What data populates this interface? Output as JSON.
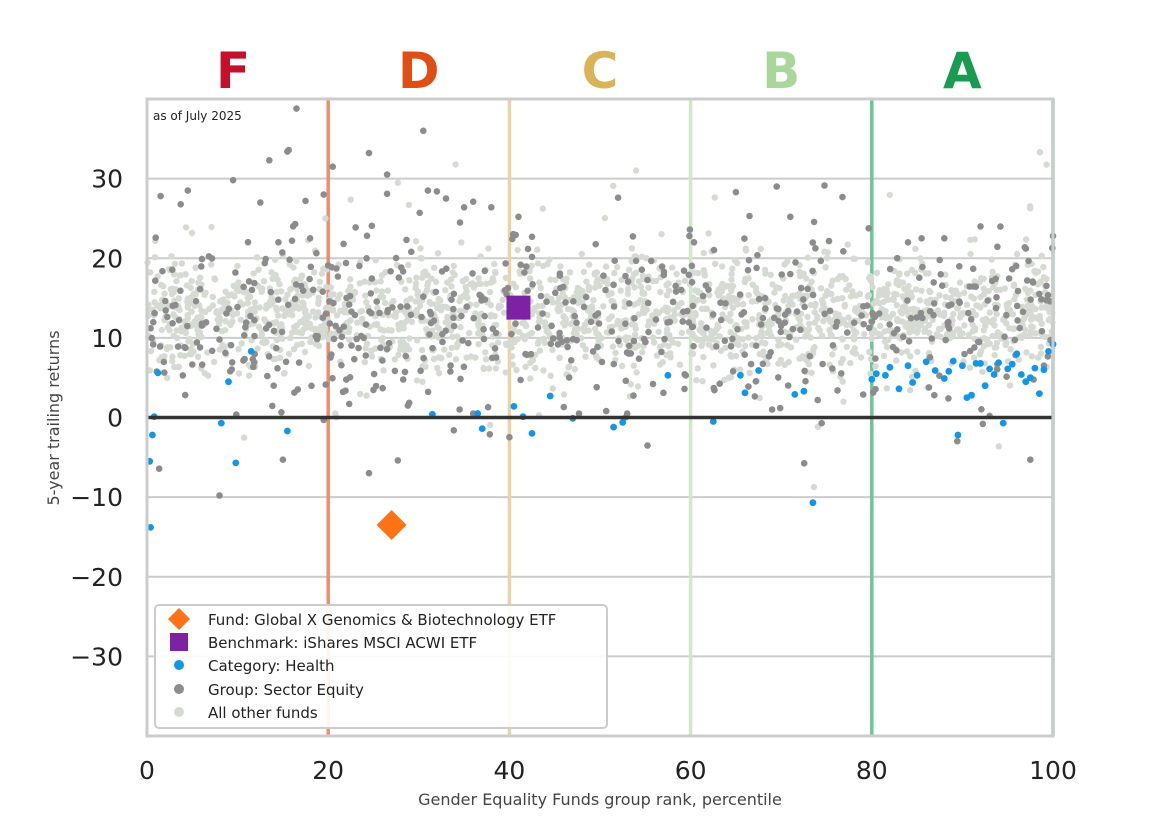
{
  "chart_data": {
    "type": "scatter",
    "annotation": "as of July 2025",
    "xlabel": "Gender Equality Funds group rank, percentile",
    "ylabel": "5-year trailing returns",
    "xlim": [
      0,
      100
    ],
    "ylim": [
      -40,
      40
    ],
    "x_ticks": [
      0,
      20,
      40,
      60,
      80,
      100
    ],
    "y_ticks": [
      30,
      20,
      10,
      0,
      -10,
      -20,
      -30
    ],
    "y_tick_labels": [
      "30",
      "20",
      "10",
      "0",
      "−10",
      "−20",
      "−30"
    ],
    "grid": "horizontal",
    "zero_line": 0,
    "grades": [
      {
        "label": "F",
        "x_center": 9.5,
        "color": "#C4102A"
      },
      {
        "label": "D",
        "x_center": 30,
        "color": "#E04E16"
      },
      {
        "label": "C",
        "x_center": 50,
        "color": "#D9B356"
      },
      {
        "label": "B",
        "x_center": 70,
        "color": "#A9D79A"
      },
      {
        "label": "A",
        "x_center": 90,
        "color": "#1A9B52"
      }
    ],
    "boundaries": [
      {
        "x": 20,
        "color": "#EE8E6E"
      },
      {
        "x": 40,
        "color": "#EED3A2"
      },
      {
        "x": 60,
        "color": "#CDEBC3"
      },
      {
        "x": 80,
        "color": "#6CC794"
      },
      {
        "x": 100,
        "color": "#6CC794"
      }
    ],
    "legend_position": "bottom-left",
    "series": [
      {
        "name": "All other funds",
        "color": "#D5DBD3",
        "marker": "dot",
        "generated": {
          "count": 1900,
          "y_mean": 13,
          "y_sd": 3.6,
          "seed": 7
        }
      },
      {
        "name": "Group: Sector Equity",
        "color": "#8C8C8C",
        "marker": "dot",
        "generated": {
          "count": 560,
          "y_mean": 12.5,
          "y_sd": 5.5,
          "seed": 31
        },
        "points": [
          [
            16.5,
            38.8
          ],
          [
            30.5,
            36
          ],
          [
            13.5,
            32.3
          ],
          [
            15.5,
            33.4
          ],
          [
            24.5,
            33.2
          ],
          [
            26.5,
            30.5
          ],
          [
            20.5,
            31.5
          ],
          [
            9.5,
            29.8
          ],
          [
            4.5,
            28.5
          ],
          [
            1.5,
            27.8
          ],
          [
            12.5,
            27
          ],
          [
            17.5,
            27.2
          ],
          [
            19.5,
            28
          ],
          [
            31,
            28.5
          ],
          [
            32,
            28.4
          ],
          [
            33,
            27.5
          ],
          [
            35,
            26.4
          ],
          [
            36,
            27.1
          ],
          [
            38,
            26.4
          ],
          [
            41,
            25.2
          ],
          [
            42.5,
            22.7
          ],
          [
            52,
            27.6
          ],
          [
            65,
            28.3
          ],
          [
            69.5,
            29
          ],
          [
            66.5,
            25.3
          ],
          [
            71,
            25.2
          ],
          [
            84,
            22
          ],
          [
            85.5,
            22.5
          ],
          [
            88,
            22.5
          ],
          [
            92,
            24
          ],
          [
            100,
            22.8
          ],
          [
            8,
            9.8
          ],
          [
            14.5,
            22
          ],
          [
            16,
            22.2
          ],
          [
            18,
            22.5
          ],
          [
            26.5,
            28.1
          ],
          [
            19.5,
            -0.3
          ],
          [
            28.8,
            1.5
          ],
          [
            34.5,
            1
          ],
          [
            36,
            0.5
          ],
          [
            24.5,
            -7
          ],
          [
            15,
            -5.3
          ],
          [
            8,
            -9.8
          ],
          [
            97.5,
            -5.3
          ],
          [
            93,
            0.2
          ],
          [
            69,
            1
          ],
          [
            53,
            0.5
          ],
          [
            46,
            1.3
          ],
          [
            57,
            3.1
          ]
        ]
      },
      {
        "name": "Category: Health",
        "color": "#1196E8",
        "marker": "dot",
        "points": [
          [
            0.3,
            -5.5
          ],
          [
            0.4,
            -13.8
          ],
          [
            0.6,
            -2.2
          ],
          [
            0.8,
            0.1
          ],
          [
            1.2,
            5.6
          ],
          [
            9,
            4.5
          ],
          [
            11.5,
            8.3
          ],
          [
            8.2,
            -0.7
          ],
          [
            9.8,
            -5.7
          ],
          [
            15.5,
            -1.7
          ],
          [
            31.5,
            0.4
          ],
          [
            36.5,
            0.5
          ],
          [
            37,
            -1.4
          ],
          [
            40.5,
            1.4
          ],
          [
            41.5,
            0.1
          ],
          [
            42.5,
            -2
          ],
          [
            44.5,
            2.7
          ],
          [
            47,
            -0.1
          ],
          [
            51.5,
            -1.2
          ],
          [
            52.5,
            -0.6
          ],
          [
            57.5,
            5.3
          ],
          [
            62.5,
            -0.5
          ],
          [
            65.5,
            5.3
          ],
          [
            66,
            3.1
          ],
          [
            67.5,
            5.9
          ],
          [
            71.5,
            2.9
          ],
          [
            72.5,
            3.3
          ],
          [
            73.5,
            -10.7
          ],
          [
            80,
            4.8
          ],
          [
            80.5,
            5.5
          ],
          [
            81.5,
            5.3
          ],
          [
            82,
            6.3
          ],
          [
            83,
            3.6
          ],
          [
            84,
            6.5
          ],
          [
            84.5,
            4.4
          ],
          [
            85,
            5.3
          ],
          [
            86,
            7
          ],
          [
            87,
            5.9
          ],
          [
            88,
            4.9
          ],
          [
            88.5,
            5.8
          ],
          [
            89,
            7.1
          ],
          [
            89.5,
            -2.2
          ],
          [
            90,
            6.5
          ],
          [
            90.5,
            2.5
          ],
          [
            91,
            2.8
          ],
          [
            91.5,
            6.8
          ],
          [
            92,
            6.8
          ],
          [
            92.5,
            4
          ],
          [
            93,
            6.1
          ],
          [
            93.5,
            5.4
          ],
          [
            94,
            6.9
          ],
          [
            94.5,
            -0.7
          ],
          [
            95,
            6.1
          ],
          [
            95.5,
            6.7
          ],
          [
            96,
            8
          ],
          [
            96.5,
            5.4
          ],
          [
            97,
            4.5
          ],
          [
            97.5,
            5
          ],
          [
            98,
            6.2
          ],
          [
            98.5,
            3
          ],
          [
            99,
            6
          ],
          [
            99.5,
            8.3
          ],
          [
            100,
            9.2
          ]
        ]
      },
      {
        "name": "Benchmark: iShares MSCI ACWI ETF",
        "color": "#7C22A3",
        "marker": "square",
        "points": [
          [
            41,
            13.8
          ]
        ]
      },
      {
        "name": "Fund: Global X Genomics & Biotechnology ETF",
        "color": "#FF7316",
        "marker": "diamond",
        "points": [
          [
            27,
            -13.5
          ]
        ]
      }
    ],
    "legend": [
      {
        "label": "Fund: Global X Genomics & Biotechnology ETF",
        "color": "#FF7316",
        "marker": "diamond"
      },
      {
        "label": "Benchmark: iShares MSCI ACWI ETF",
        "color": "#7C22A3",
        "marker": "square"
      },
      {
        "label": "Category: Health",
        "color": "#1196E8",
        "marker": "dot"
      },
      {
        "label": "Group: Sector Equity",
        "color": "#8C8C8C",
        "marker": "dot"
      },
      {
        "label": "All other funds",
        "color": "#D5DBD3",
        "marker": "dot"
      }
    ]
  }
}
